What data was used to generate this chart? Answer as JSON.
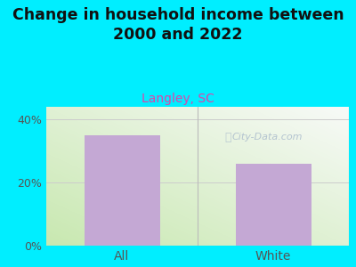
{
  "categories": [
    "All",
    "White"
  ],
  "values": [
    35.0,
    26.0
  ],
  "bar_color": "#c4a8d4",
  "title": "Change in household income between\n2000 and 2022",
  "subtitle": "Langley, SC",
  "subtitle_color": "#dd44aa",
  "title_fontsize": 12.5,
  "subtitle_fontsize": 10,
  "ylim": [
    0,
    44
  ],
  "yticks": [
    0,
    20,
    40
  ],
  "ytick_labels": [
    "0%",
    "20%",
    "40%"
  ],
  "background_color": "#00eeff",
  "watermark": "City-Data.com",
  "watermark_color": "#aabbcc",
  "grid_color": "#cccccc",
  "tick_label_color": "#555555",
  "bar_width": 0.5,
  "divider_color": "#bbbbbb",
  "bg_green": "#c8e8b0",
  "bg_white": "#f0f5f0"
}
